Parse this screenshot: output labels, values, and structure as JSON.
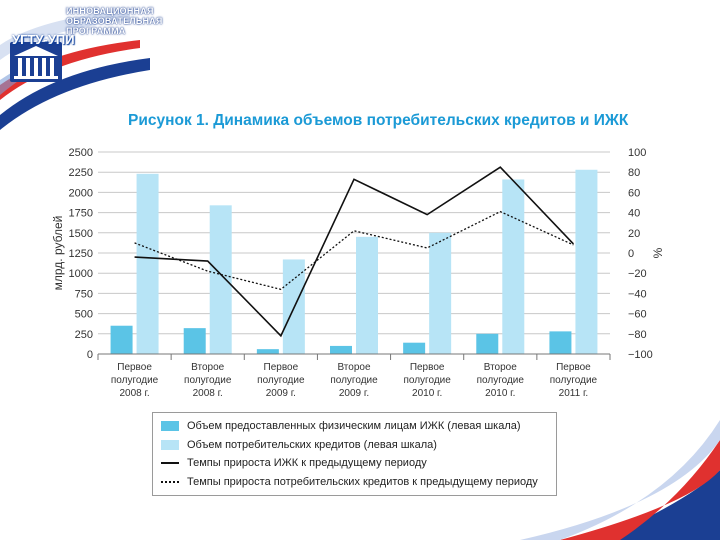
{
  "header": {
    "logo_label": "УГТУ-УПИ",
    "program_lines": [
      "ИННОВАЦИОННАЯ",
      "ОБРАЗОВАТЕЛЬНАЯ",
      "ПРОГРАММА"
    ]
  },
  "colors": {
    "accent_blue": "#1b9ad6",
    "brand_dark_blue": "#1b3f93",
    "brand_red": "#e0312f",
    "bar_izhk": "#5bc4e6",
    "bar_consumer": "#b7e4f6"
  },
  "chart_data": {
    "type": "bar",
    "title": "Рисунок 1. Динамика объемов потребительских кредитов и ИЖК",
    "ylabel": "млрд. рублей",
    "y2label": "%",
    "ylim": [
      0,
      2500
    ],
    "y2lim": [
      -100,
      100
    ],
    "yticks": [
      "0",
      "250",
      "500",
      "750",
      "1000",
      "1250",
      "1500",
      "1750",
      "2000",
      "2250",
      "2500"
    ],
    "y2ticks": [
      "−100",
      "−80",
      "−60",
      "−40",
      "−20",
      "0",
      "20",
      "40",
      "60",
      "80",
      "100"
    ],
    "grid": true,
    "categories": [
      [
        "Первое",
        "полугодие",
        "2008 г."
      ],
      [
        "Второе",
        "полугодие",
        "2008 г."
      ],
      [
        "Первое",
        "полугодие",
        "2009 г."
      ],
      [
        "Второе",
        "полугодие",
        "2009 г."
      ],
      [
        "Первое",
        "полугодие",
        "2010 г."
      ],
      [
        "Второе",
        "полугодие",
        "2010 г."
      ],
      [
        "Первое",
        "полугодие",
        "2011 г."
      ]
    ],
    "series": [
      {
        "name": "Объем предоставленных физическим лицам ИЖК (левая шкала)",
        "kind": "bar",
        "axis": "left",
        "color": "#5bc4e6",
        "values": [
          350,
          320,
          60,
          100,
          140,
          250,
          280
        ]
      },
      {
        "name": "Объем потребительских кредитов (левая шкала)",
        "kind": "bar",
        "axis": "left",
        "color": "#b7e4f6",
        "values": [
          2230,
          1840,
          1170,
          1450,
          1500,
          2160,
          2280
        ]
      },
      {
        "name": "Темпы прироста ИЖК к предыдущему периоду",
        "kind": "line",
        "axis": "right",
        "style": "solid",
        "color": "#111111",
        "values": [
          -4,
          -8,
          -82,
          73,
          38,
          85,
          9
        ]
      },
      {
        "name": "Темпы прироста потребительских кредитов к предыдущему периоду",
        "kind": "line",
        "axis": "right",
        "style": "dotted",
        "color": "#111111",
        "values": [
          10,
          -18,
          -36,
          22,
          5,
          41,
          8
        ]
      }
    ]
  }
}
